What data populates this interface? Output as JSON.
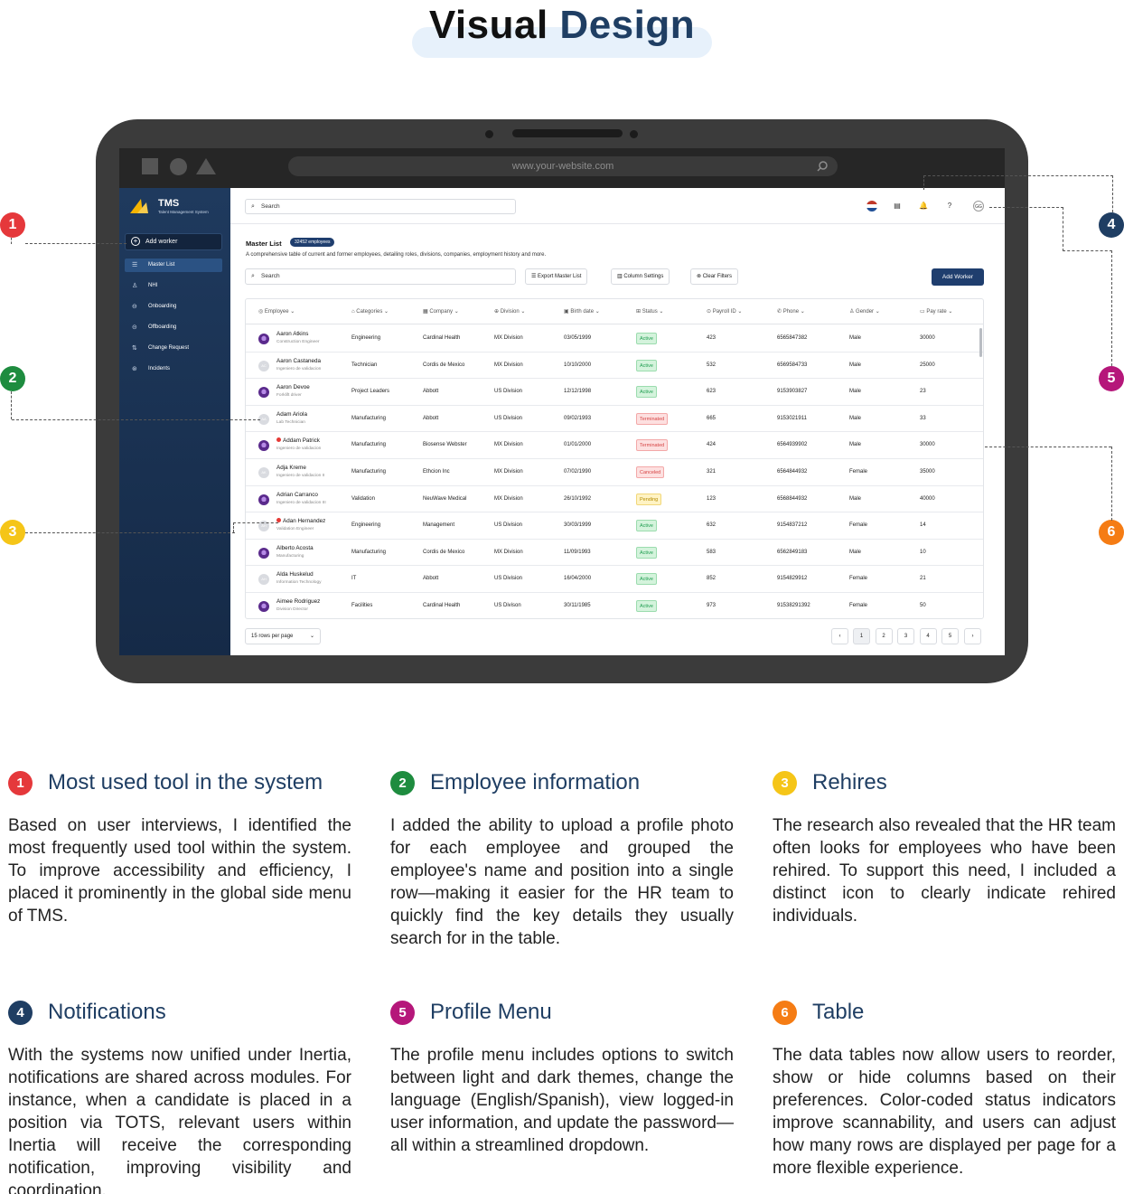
{
  "heading": {
    "word1": "Visual",
    "word2": "Design"
  },
  "browser": {
    "url": "www.your-website.com"
  },
  "sidebar": {
    "brand": {
      "title": "TMS",
      "subtitle": "Talent Management System"
    },
    "add_worker": "Add worker",
    "items": [
      {
        "label": "Master List",
        "icon": "list-icon"
      },
      {
        "label": "NHI",
        "icon": "user-add-icon"
      },
      {
        "label": "Onboarding",
        "icon": "onboarding-icon"
      },
      {
        "label": "Offboarding",
        "icon": "offboarding-icon"
      },
      {
        "label": "Change Request",
        "icon": "swap-icon"
      },
      {
        "label": "Incidents",
        "icon": "incident-icon"
      }
    ]
  },
  "topbar": {
    "search_placeholder": "Search",
    "avatar_initials": "GG"
  },
  "master_list": {
    "title": "Master List",
    "badge": "32452 employees",
    "description": "A comprehensive table of current and former employees, detailing roles, divisions, companies, employment history and more.",
    "search_placeholder": "Search",
    "export_label": "Export Master List",
    "columns_label": "Column Settings",
    "clear_label": "Clear Filters",
    "add_label": "Add Worker"
  },
  "table": {
    "headers": [
      "Employee",
      "Categories",
      "Company",
      "Division",
      "Birth date",
      "Status",
      "Payroll ID",
      "Phone",
      "Gender",
      "Pay rate"
    ],
    "rows": [
      {
        "name": "Aaron Atkins",
        "position": "Construction Engineer",
        "avatar": "photo",
        "initials": "",
        "rehire": false,
        "category": "Engineering",
        "company": "Cardinal Health",
        "division": "MX Division",
        "birth": "03/05/1999",
        "status": "Active",
        "payroll": "423",
        "phone": "6565847382",
        "gender": "Male",
        "pay": "30000"
      },
      {
        "name": "Aaron Castaneda",
        "position": "Ingeniero de validacion",
        "avatar": "initials",
        "initials": "AC",
        "rehire": false,
        "category": "Technician",
        "company": "Cordis de Mexico",
        "division": "MX Division",
        "birth": "10/10/2000",
        "status": "Active",
        "payroll": "532",
        "phone": "6569584733",
        "gender": "Male",
        "pay": "25000"
      },
      {
        "name": "Aaron Devoe",
        "position": "Forklift driver",
        "avatar": "photo",
        "initials": "",
        "rehire": false,
        "category": "Project Leaders",
        "company": "Abbott",
        "division": "US Division",
        "birth": "12/12/1998",
        "status": "Active",
        "payroll": "623",
        "phone": "9153903827",
        "gender": "Male",
        "pay": "23"
      },
      {
        "name": "Adam Ariola",
        "position": "Lab Technician",
        "avatar": "initials",
        "initials": "AA",
        "rehire": false,
        "category": "Manufacturing",
        "company": "Abbott",
        "division": "US Division",
        "birth": "09/02/1993",
        "status": "Terminated",
        "payroll": "665",
        "phone": "9153021911",
        "gender": "Male",
        "pay": "33"
      },
      {
        "name": "Addam Patrick",
        "position": "Ingeniero de validacion",
        "avatar": "photo",
        "initials": "",
        "rehire": true,
        "category": "Manufacturing",
        "company": "Biosense Webster",
        "division": "MX Division",
        "birth": "01/01/2000",
        "status": "Terminated",
        "payroll": "424",
        "phone": "6564939902",
        "gender": "Male",
        "pay": "30000"
      },
      {
        "name": "Adja Kreme",
        "position": "Ingeniero de validacion II",
        "avatar": "initials",
        "initials": "AK",
        "rehire": false,
        "category": "Manufacturing",
        "company": "Ethcion Inc",
        "division": "MX Division",
        "birth": "07/02/1990",
        "status": "Canceled",
        "payroll": "321",
        "phone": "6564844932",
        "gender": "Female",
        "pay": "35000"
      },
      {
        "name": "Adrian Carranco",
        "position": "Ingeniero de validacion III",
        "avatar": "photo",
        "initials": "",
        "rehire": false,
        "category": "Validation",
        "company": "NeuWave Medical",
        "division": "MX Division",
        "birth": "26/10/1992",
        "status": "Pending",
        "payroll": "123",
        "phone": "6568844932",
        "gender": "Male",
        "pay": "40000"
      },
      {
        "name": "Adan Hernandez",
        "position": "Validation Engineer",
        "avatar": "initials",
        "initials": "AH",
        "rehire": true,
        "category": "Engineering",
        "company": "Management",
        "division": "US Division",
        "birth": "30/03/1999",
        "status": "Active",
        "payroll": "632",
        "phone": "9154837212",
        "gender": "Female",
        "pay": "14"
      },
      {
        "name": "Alberto Acosta",
        "position": "Manufacturing",
        "avatar": "photo",
        "initials": "",
        "rehire": false,
        "category": "Manufacturing",
        "company": "Cordis de Mexico",
        "division": "MX Division",
        "birth": "11/09/1993",
        "status": "Active",
        "payroll": "583",
        "phone": "6562849183",
        "gender": "Male",
        "pay": "10"
      },
      {
        "name": "Alda Huskelud",
        "position": "Information Technology",
        "avatar": "initials",
        "initials": "AH",
        "rehire": false,
        "category": "IT",
        "company": "Abbott",
        "division": "US Division",
        "birth": "16/04/2000",
        "status": "Active",
        "payroll": "852",
        "phone": "9154829912",
        "gender": "Female",
        "pay": "21"
      },
      {
        "name": "Aimee Rodriguez",
        "position": "Division Director",
        "avatar": "photo",
        "initials": "",
        "rehire": false,
        "category": "Facilities",
        "company": "Cardinal Health",
        "division": "US Divison",
        "birth": "30/11/1985",
        "status": "Active",
        "payroll": "973",
        "phone": "91538291392",
        "gender": "Female",
        "pay": "50"
      }
    ]
  },
  "pagination": {
    "rows_per_page": "15 rows per page",
    "pages": [
      "1",
      "2",
      "3",
      "4",
      "5"
    ],
    "prev": "‹",
    "next": "›"
  },
  "colors": {
    "badge1": "#e5383b",
    "badge2": "#1e8c3f",
    "badge3": "#f5c518",
    "badge4": "#1f3e63",
    "badge5": "#b5177a",
    "badge6": "#f57c14"
  },
  "sections": [
    {
      "num": "1",
      "title": "Most used tool in the system",
      "body": "Based on user interviews, I identified the most frequently used tool within the system. To improve accessibility and efficiency, I placed it prominently in the global side menu of TMS."
    },
    {
      "num": "2",
      "title": "Employee information",
      "body": "I added the ability to upload a profile photo for each employee and grouped the employee's name and position into a single row—making it easier for the HR team to quickly find the key details they usually search for in the table."
    },
    {
      "num": "3",
      "title": "Rehires",
      "body": "The research also revealed that the HR team often looks for employees who have been rehired. To support this need, I included a distinct icon to clearly indicate rehired individuals."
    },
    {
      "num": "4",
      "title": "Notifications",
      "body": "With the systems now unified under Inertia, notifications are shared across modules. For instance, when a candidate is placed in a position via TOTS, relevant users within Inertia will receive the corresponding notification, improving visibility and coordination."
    },
    {
      "num": "5",
      "title": "Profile Menu",
      "body": "The profile menu includes options to switch between light and dark themes, change the language (English/Spanish), view logged-in user information, and update the password—all within a streamlined dropdown."
    },
    {
      "num": "6",
      "title": "Table",
      "body": "The data tables now allow users to reorder, show or hide columns based on their preferences. Color-coded status indicators improve scannability, and users can adjust how many rows are displayed per page for a more flexible experience."
    }
  ]
}
